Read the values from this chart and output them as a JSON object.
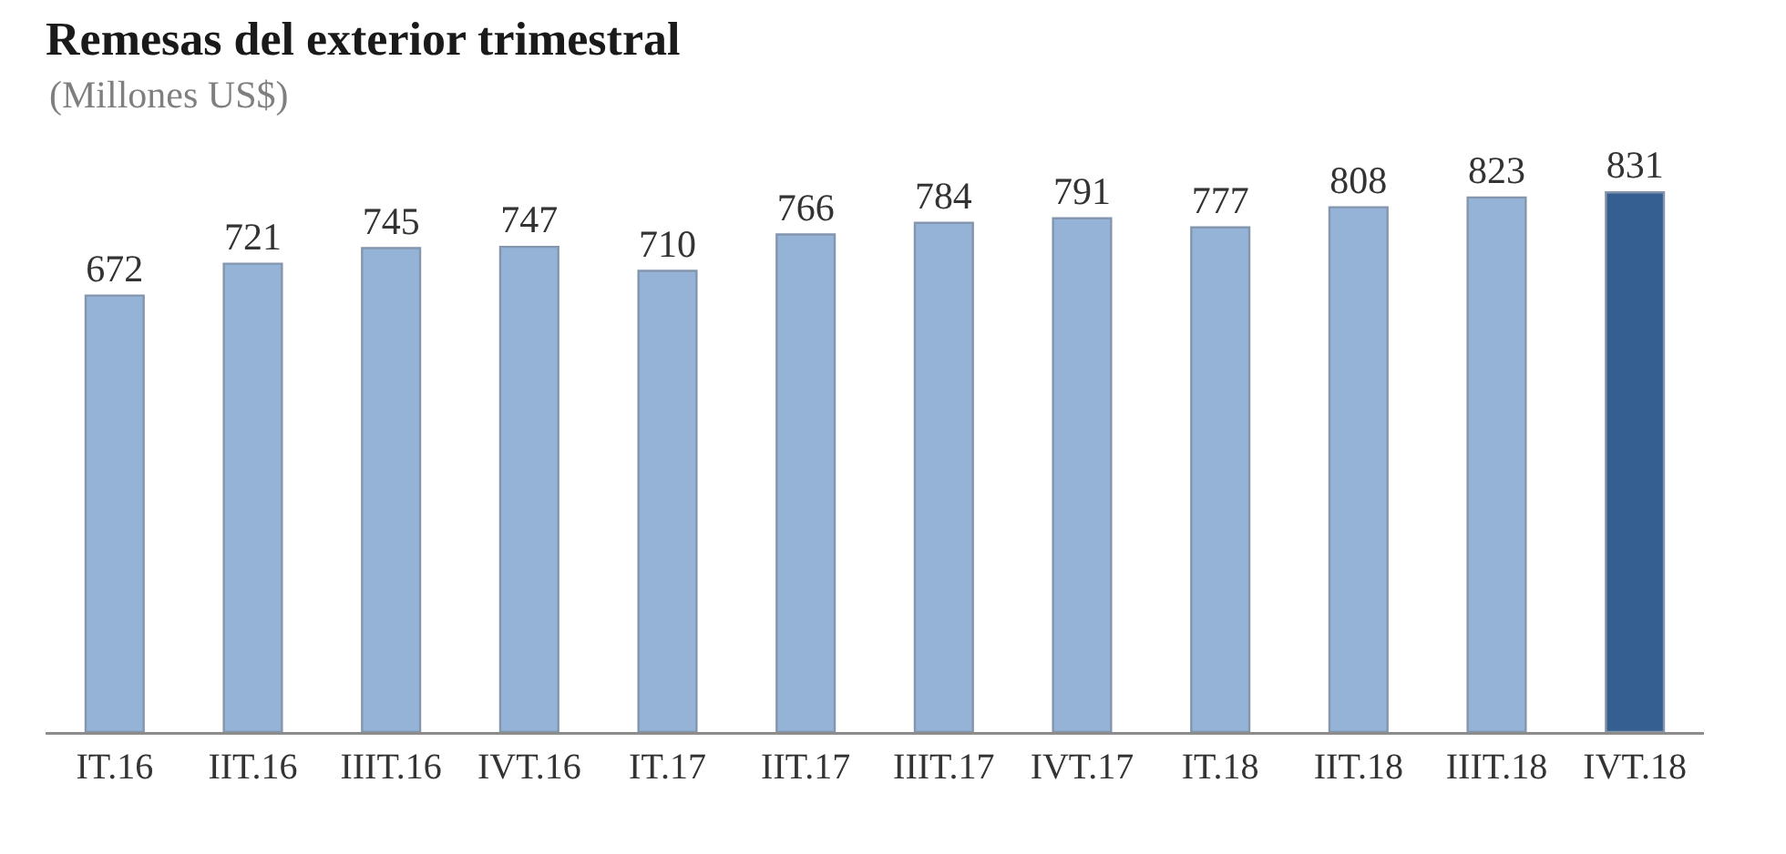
{
  "chart_data": {
    "type": "bar",
    "title": "Remesas del exterior trimestral",
    "subtitle": "(Millones US$)",
    "categories": [
      "IT.16",
      "IIT.16",
      "IIIT.16",
      "IVT.16",
      "IT.17",
      "IIT.17",
      "IIIT.17",
      "IVT.17",
      "IT.18",
      "IIT.18",
      "IIIT.18",
      "IVT.18"
    ],
    "values": [
      672,
      721,
      745,
      747,
      710,
      766,
      784,
      791,
      777,
      808,
      823,
      831
    ],
    "colors": [
      "#95b3d7",
      "#95b3d7",
      "#95b3d7",
      "#95b3d7",
      "#95b3d7",
      "#95b3d7",
      "#95b3d7",
      "#95b3d7",
      "#95b3d7",
      "#95b3d7",
      "#95b3d7",
      "#365f91"
    ],
    "data_labels": true
  }
}
